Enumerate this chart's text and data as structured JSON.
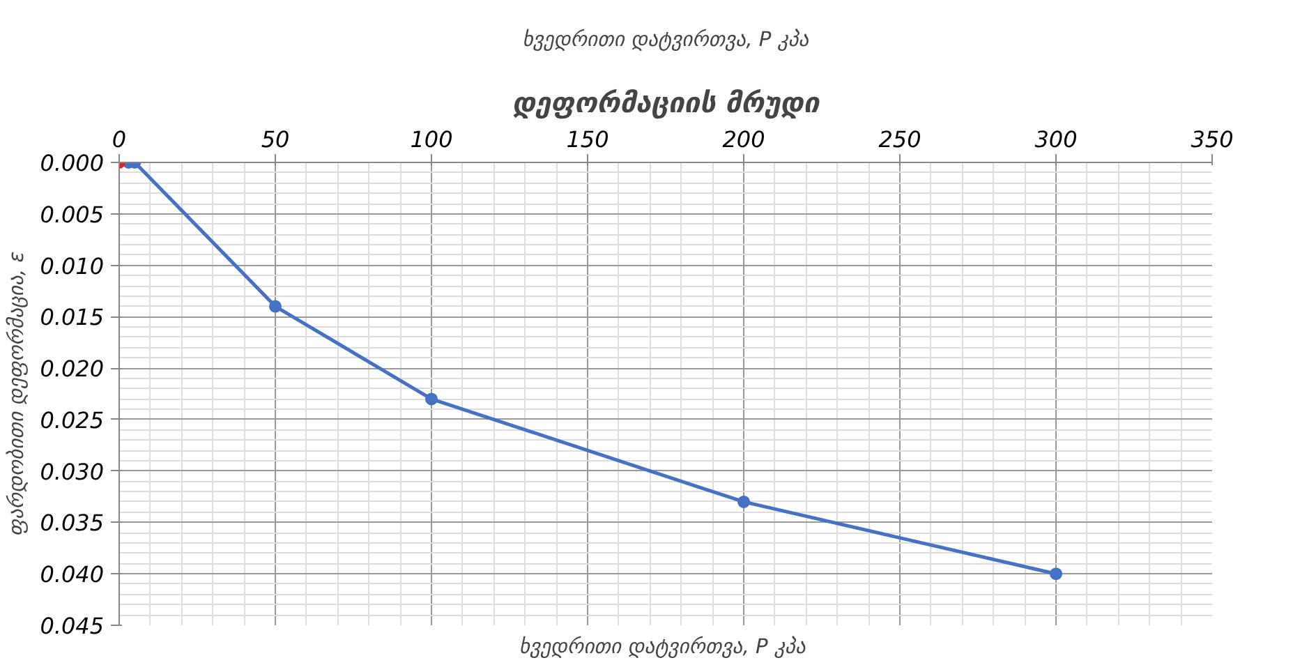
{
  "chart_data": {
    "type": "line",
    "title": "დეფორმაციის მრუდი",
    "xlabel": "ხვედრითი დატვირთვა, P  კპა",
    "ylabel": "ფარდობითი დეფორმაცია, ε",
    "annotations": [
      "ხვედრითი დატვირთვა, P კპა"
    ],
    "series": [
      {
        "type": "scatter",
        "color": "#e02020",
        "x": [
          0
        ],
        "values": [
          0
        ]
      },
      {
        "color": "#4472c4",
        "x": [
          3,
          5,
          50,
          100,
          200,
          300
        ],
        "values": [
          0,
          0,
          0.014,
          0.023,
          0.033,
          0.04
        ]
      }
    ],
    "xlim": [
      0,
      350
    ],
    "xticks": [
      0,
      50,
      100,
      150,
      200,
      250,
      300,
      350
    ],
    "ylim": [
      0.045,
      0
    ],
    "yticks": [
      {
        "value": 0,
        "label": "0.000"
      },
      {
        "value": 0.005,
        "label": "0.005"
      },
      {
        "value": 0.01,
        "label": "0.010"
      },
      {
        "value": 0.015,
        "label": "0.015"
      },
      {
        "value": 0.02,
        "label": "0.020"
      },
      {
        "value": 0.025,
        "label": "0.025"
      },
      {
        "value": 0.03,
        "label": "0.030"
      },
      {
        "value": 0.035,
        "label": "0.035"
      },
      {
        "value": 0.04,
        "label": "0.040"
      },
      {
        "value": 0.045,
        "label": "0.045"
      }
    ],
    "grid": true,
    "marker": "circle",
    "line_style": "solid"
  }
}
